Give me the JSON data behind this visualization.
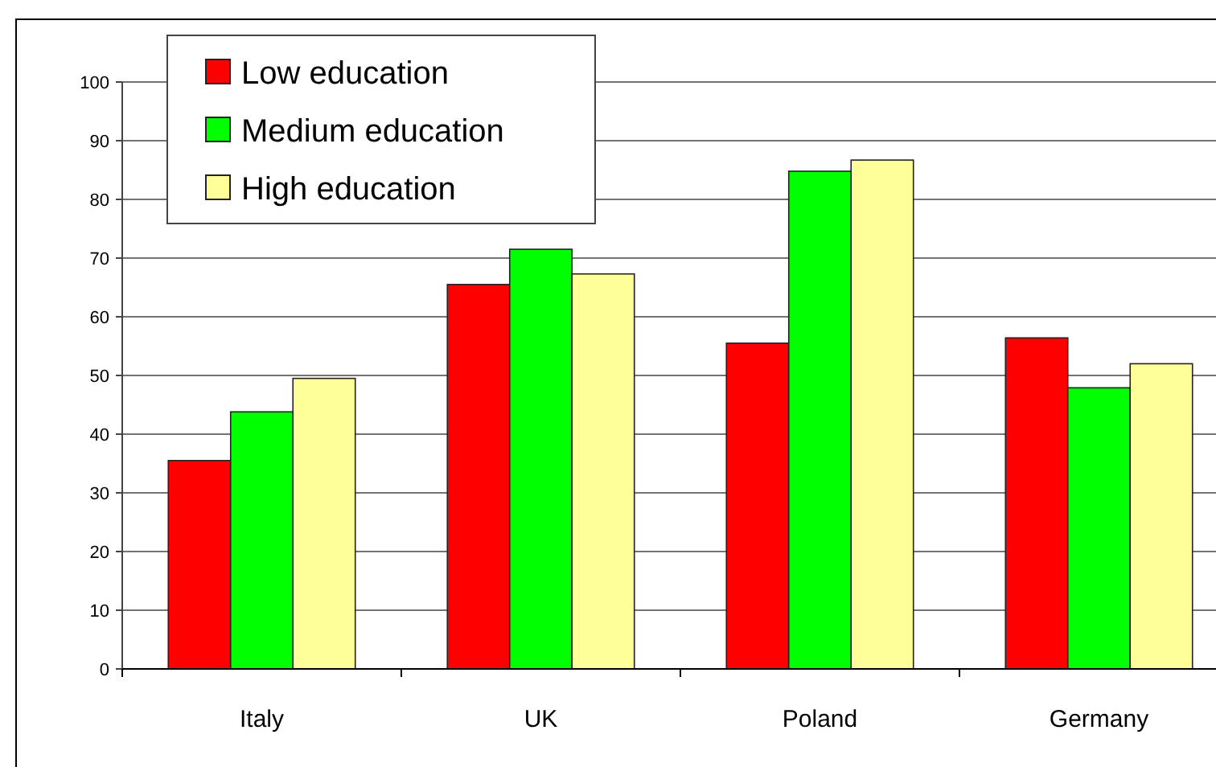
{
  "chart_data": {
    "type": "bar",
    "categories": [
      "Italy",
      "UK",
      "Poland",
      "Germany"
    ],
    "series": [
      {
        "name": "Low education",
        "color": "#ff0000",
        "values": [
          35.5,
          65.5,
          55.5,
          56.4
        ]
      },
      {
        "name": "Medium education",
        "color": "#00ff00",
        "values": [
          43.8,
          71.5,
          84.8,
          47.9
        ]
      },
      {
        "name": "High education",
        "color": "#ffff99",
        "values": [
          49.5,
          67.3,
          86.7,
          52
        ]
      }
    ],
    "ylim": [
      0,
      100
    ],
    "yticks": [
      0,
      10,
      20,
      30,
      40,
      50,
      60,
      70,
      80,
      90,
      100
    ],
    "grid": "y",
    "legend": "top left"
  }
}
